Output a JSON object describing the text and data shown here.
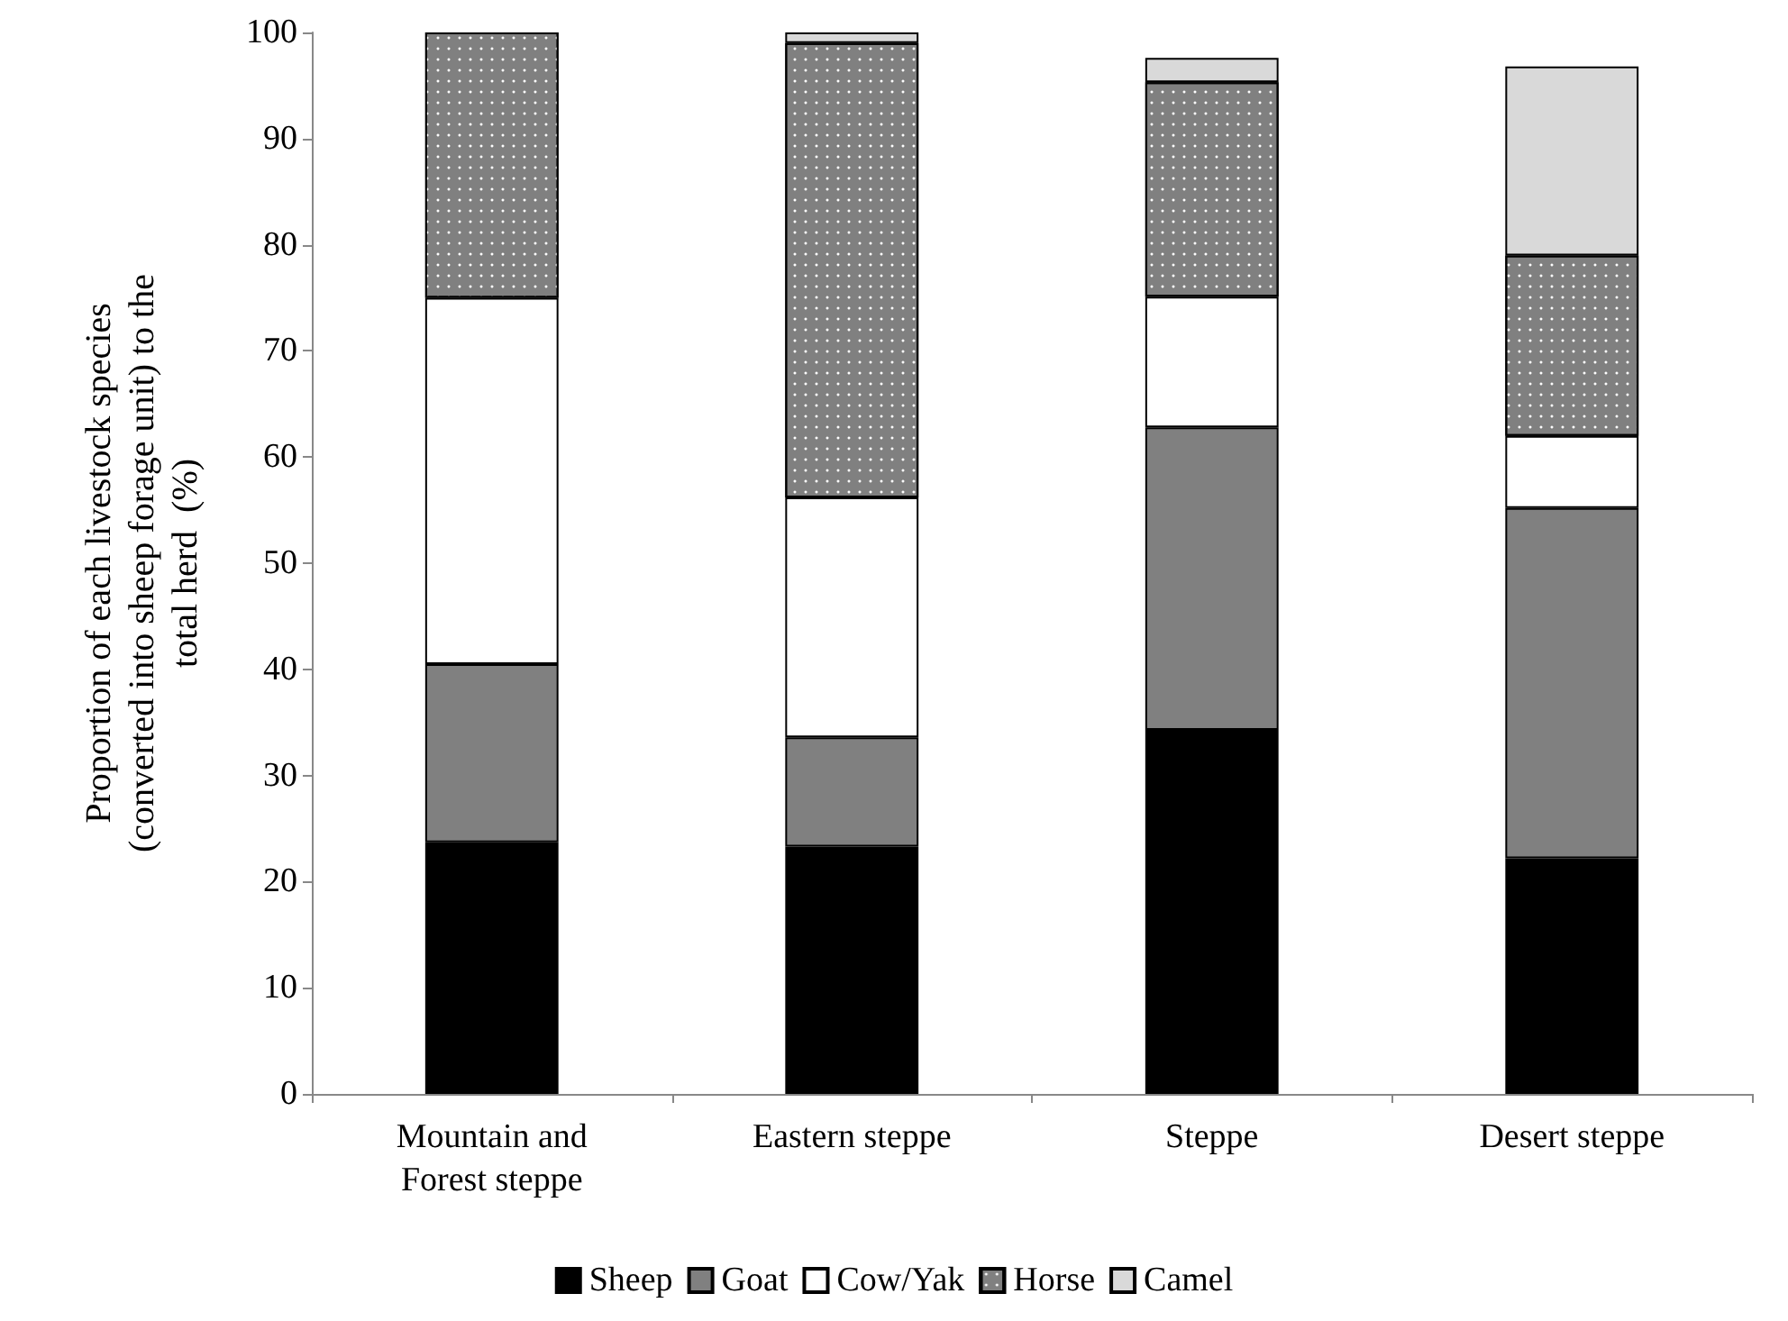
{
  "chart_data": {
    "type": "bar",
    "stacked": true,
    "ylabel": "Proportion of each livestock species\n(converted into sheep forage unit) to the\ntotal herd  (%)",
    "categories": [
      "Mountain and\nForest steppe",
      "Eastern steppe",
      "Steppe",
      "Desert steppe"
    ],
    "series": [
      {
        "name": "Sheep",
        "color": "#000000",
        "values": [
          23.7,
          23.3,
          34.3,
          22.2
        ]
      },
      {
        "name": "Goat",
        "color": "#808080",
        "values": [
          16.8,
          10.3,
          28.5,
          33.0
        ]
      },
      {
        "name": "Cow/Yak",
        "color": "#ffffff",
        "values": [
          34.5,
          22.6,
          12.3,
          6.8
        ]
      },
      {
        "name": "Horse",
        "color": "#808080",
        "values": [
          25.0,
          42.8,
          20.2,
          17.0
        ]
      },
      {
        "name": "Camel",
        "color": "#d9d9d9",
        "values": [
          null,
          1.0,
          2.3,
          17.8
        ]
      }
    ],
    "ylim": [
      0,
      100
    ],
    "yticks": [
      0,
      10,
      20,
      30,
      40,
      50,
      60,
      70,
      80,
      90,
      100
    ],
    "grid": false,
    "legend": "bottom"
  }
}
